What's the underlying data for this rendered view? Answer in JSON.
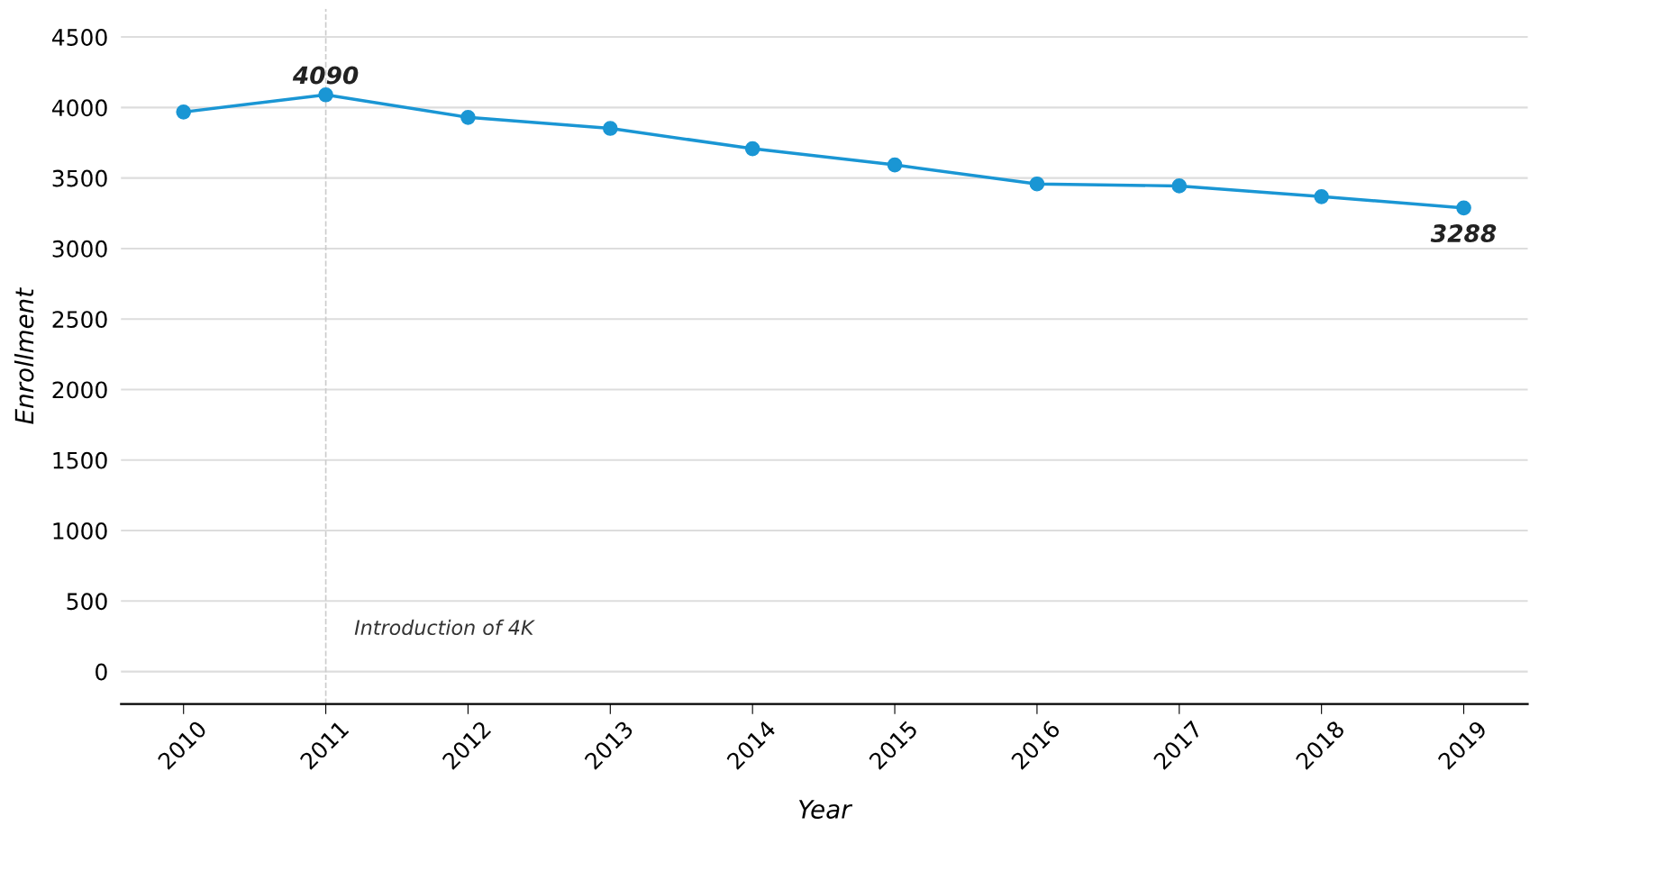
{
  "chart_data": {
    "type": "line",
    "xlabel": "Year",
    "ylabel": "Enrollment",
    "x": [
      2010,
      2011,
      2012,
      2013,
      2014,
      2015,
      2016,
      2017,
      2018,
      2019
    ],
    "series": [
      {
        "color": "#1a96d4",
        "values": [
          3968,
          4090,
          3930,
          3852,
          3708,
          3593,
          3458,
          3444,
          3368,
          3288
        ]
      }
    ],
    "xlim": [
      2009.56,
      2019.45
    ],
    "xticks": [
      2010,
      2011,
      2012,
      2013,
      2014,
      2015,
      2016,
      2017,
      2018,
      2019
    ],
    "ylim": [
      -230,
      4700
    ],
    "yticks": [
      0,
      500,
      1000,
      1500,
      2000,
      2500,
      3000,
      3500,
      4000,
      4500
    ],
    "grid": "y",
    "marker": "circle",
    "line_style": "solid",
    "ref_lines": [
      {
        "axis": "x",
        "value": 2011,
        "label": "Introduction of 4K",
        "color": "#cccccc",
        "line_style": "dashed"
      }
    ],
    "annotations": [
      {
        "text": "4090",
        "x": 2011,
        "y": 4090
      },
      {
        "text": "3288",
        "x": 2019,
        "y": 3288
      }
    ]
  }
}
